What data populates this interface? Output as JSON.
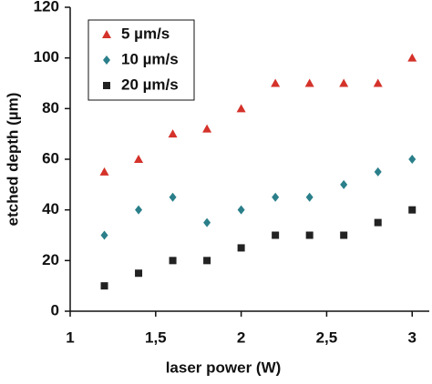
{
  "chart_data": {
    "type": "scatter",
    "x_label": "laser power (W)",
    "y_label": "etched depth (µm)",
    "x": [
      1.2,
      1.4,
      1.6,
      1.8,
      2.0,
      2.2,
      2.4,
      2.6,
      2.8,
      3.0
    ],
    "series": [
      {
        "name": "5 µm/s",
        "color": "#d4322a",
        "marker": "triangle",
        "values": [
          55,
          60,
          70,
          72,
          80,
          90,
          90,
          90,
          90,
          100
        ]
      },
      {
        "name": "10 µm/s",
        "color": "#2a7f8a",
        "marker": "diamond",
        "values": [
          30,
          40,
          45,
          35,
          40,
          45,
          45,
          50,
          55,
          60
        ]
      },
      {
        "name": "20 µm/s",
        "color": "#222222",
        "marker": "square",
        "values": [
          10,
          15,
          20,
          20,
          25,
          30,
          30,
          30,
          35,
          40
        ]
      }
    ],
    "xlim": [
      1,
      3.1
    ],
    "xticks": [
      1,
      {
        "value": 1.5,
        "label": "1,5"
      },
      2,
      {
        "value": 2.5,
        "label": "2,5"
      },
      3
    ],
    "ylim": [
      0,
      120
    ],
    "yticks": [
      0,
      20,
      40,
      60,
      80,
      100,
      120
    ],
    "legend": "upper-left"
  }
}
